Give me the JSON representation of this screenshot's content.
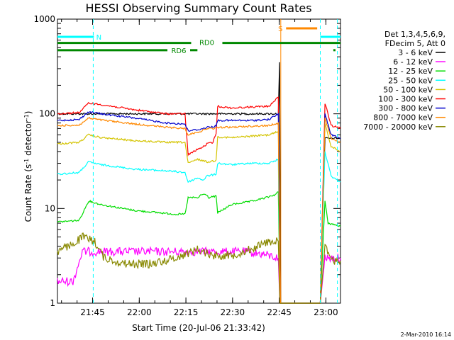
{
  "chart_data": {
    "type": "line",
    "title": "HESSI Observing Summary Count Rates",
    "xlabel": "Start Time (20-Jul-06 21:33:42)",
    "ylabel_main": "Count Rate (s",
    "ylabel_sup1": "-1",
    "ylabel_mid": " detector",
    "ylabel_sup2": "-1",
    "ylabel_end": ")",
    "y_scale": "log",
    "ylim": [
      1,
      1000
    ],
    "xlim_minutes": [
      0,
      91
    ],
    "x_ticks": [
      {
        "label": "21:45",
        "min": 11.3
      },
      {
        "label": "22:00",
        "min": 26.3
      },
      {
        "label": "22:15",
        "min": 41.3
      },
      {
        "label": "22:30",
        "min": 56.3
      },
      {
        "label": "22:45",
        "min": 71.3
      },
      {
        "label": "23:00",
        "min": 86.3
      }
    ],
    "y_ticks": [
      {
        "label": "1",
        "value": 1
      },
      {
        "label": "10",
        "value": 10
      },
      {
        "label": "100",
        "value": 100
      },
      {
        "label": "1000",
        "value": 1000
      }
    ],
    "legend": {
      "header1": "Det 1,3,4,5,6,9,",
      "header2": "FDecim 5, Att 0",
      "placement": "right"
    },
    "series": [
      {
        "name": "3 - 6 keV",
        "color": "#000000",
        "points": [
          [
            0,
            100
          ],
          [
            1,
            100
          ],
          [
            71,
            100
          ],
          [
            71.4,
            350
          ],
          [
            71.8,
            1
          ],
          [
            84.5,
            1
          ],
          [
            86,
            55
          ],
          [
            91,
            55
          ]
        ]
      },
      {
        "name": "6 - 12 keV",
        "color": "#ff00ff",
        "points": [
          [
            0,
            1.7
          ],
          [
            5,
            1.7
          ],
          [
            8,
            3.5
          ],
          [
            60,
            3.5
          ],
          [
            66,
            3.3
          ],
          [
            71,
            3
          ],
          [
            71.5,
            1
          ],
          [
            84.5,
            1
          ],
          [
            86,
            3
          ],
          [
            91,
            3
          ]
        ]
      },
      {
        "name": "12 - 25 keV",
        "color": "#00dd00",
        "points": [
          [
            0,
            7.2
          ],
          [
            7,
            7.5
          ],
          [
            10,
            12
          ],
          [
            14,
            11
          ],
          [
            25,
            9.5
          ],
          [
            38,
            8.7
          ],
          [
            41,
            8.7
          ],
          [
            42,
            13
          ],
          [
            45,
            13
          ],
          [
            45.5,
            13
          ],
          [
            46,
            14
          ],
          [
            48,
            14
          ],
          [
            48.5,
            13
          ],
          [
            51,
            13.5
          ],
          [
            51.5,
            9
          ],
          [
            56,
            11
          ],
          [
            63,
            12
          ],
          [
            67,
            13
          ],
          [
            70,
            14
          ],
          [
            71,
            15
          ],
          [
            71.6,
            1
          ],
          [
            84.5,
            1
          ],
          [
            86,
            12
          ],
          [
            87,
            7
          ],
          [
            91,
            6.5
          ]
        ]
      },
      {
        "name": "25 - 50 keV",
        "color": "#00ffff",
        "points": [
          [
            0,
            23
          ],
          [
            7,
            24
          ],
          [
            10,
            31
          ],
          [
            14,
            29
          ],
          [
            25,
            26
          ],
          [
            35,
            25
          ],
          [
            41,
            24
          ],
          [
            42,
            19
          ],
          [
            45,
            21
          ],
          [
            47,
            20
          ],
          [
            48,
            22
          ],
          [
            51,
            23
          ],
          [
            51.5,
            30
          ],
          [
            56,
            29
          ],
          [
            62,
            30
          ],
          [
            68,
            30
          ],
          [
            71,
            33
          ],
          [
            71.6,
            1
          ],
          [
            84.5,
            1
          ],
          [
            86,
            40
          ],
          [
            88,
            22
          ],
          [
            91,
            19
          ]
        ]
      },
      {
        "name": "50 - 100 keV",
        "color": "#d4c400",
        "points": [
          [
            0,
            48
          ],
          [
            7,
            50
          ],
          [
            10,
            60
          ],
          [
            14,
            56
          ],
          [
            25,
            52
          ],
          [
            35,
            50
          ],
          [
            41,
            50
          ],
          [
            42,
            30
          ],
          [
            45,
            33
          ],
          [
            47,
            32
          ],
          [
            48,
            31
          ],
          [
            51,
            32
          ],
          [
            51.5,
            57
          ],
          [
            56,
            56
          ],
          [
            62,
            58
          ],
          [
            68,
            60
          ],
          [
            71,
            65
          ],
          [
            71.6,
            1
          ],
          [
            84.5,
            1
          ],
          [
            86,
            80
          ],
          [
            88,
            45
          ],
          [
            91,
            40
          ]
        ]
      },
      {
        "name": "100 - 300 keV",
        "color": "#ff0000",
        "points": [
          [
            0,
            100
          ],
          [
            7,
            103
          ],
          [
            10,
            130
          ],
          [
            14,
            125
          ],
          [
            25,
            110
          ],
          [
            35,
            100
          ],
          [
            41,
            100
          ],
          [
            42,
            37
          ],
          [
            45,
            42
          ],
          [
            47,
            45
          ],
          [
            48,
            48
          ],
          [
            50,
            50
          ],
          [
            51,
            62
          ],
          [
            51.5,
            120
          ],
          [
            56,
            115
          ],
          [
            62,
            118
          ],
          [
            68,
            120
          ],
          [
            71,
            150
          ],
          [
            71.6,
            1
          ],
          [
            84.5,
            1
          ],
          [
            86,
            130
          ],
          [
            88,
            75
          ],
          [
            91,
            70
          ]
        ]
      },
      {
        "name": "300 - 800 keV",
        "color": "#0000cc",
        "points": [
          [
            0,
            85
          ],
          [
            7,
            87
          ],
          [
            10,
            105
          ],
          [
            14,
            100
          ],
          [
            25,
            90
          ],
          [
            35,
            80
          ],
          [
            41,
            78
          ],
          [
            42,
            66
          ],
          [
            45,
            68
          ],
          [
            47,
            70
          ],
          [
            48,
            72
          ],
          [
            51,
            74
          ],
          [
            51.5,
            85
          ],
          [
            56,
            85
          ],
          [
            62,
            85
          ],
          [
            68,
            87
          ],
          [
            71,
            100
          ],
          [
            71.6,
            1
          ],
          [
            84.5,
            1
          ],
          [
            86,
            100
          ],
          [
            88,
            60
          ],
          [
            91,
            55
          ]
        ]
      },
      {
        "name": "800 - 7000 keV",
        "color": "#ff8800",
        "points": [
          [
            0,
            75
          ],
          [
            7,
            76
          ],
          [
            10,
            90
          ],
          [
            14,
            86
          ],
          [
            25,
            78
          ],
          [
            35,
            72
          ],
          [
            41,
            70
          ],
          [
            42,
            60
          ],
          [
            45,
            64
          ],
          [
            47,
            67
          ],
          [
            48,
            70
          ],
          [
            51,
            70
          ],
          [
            51.5,
            72
          ],
          [
            56,
            72
          ],
          [
            62,
            74
          ],
          [
            68,
            75
          ],
          [
            71,
            80
          ],
          [
            71.6,
            1
          ],
          [
            84.5,
            1
          ],
          [
            86,
            90
          ],
          [
            88,
            55
          ],
          [
            91,
            50
          ]
        ]
      },
      {
        "name": "7000 - 20000 keV",
        "color": "#888800",
        "points": [
          [
            0,
            3.5
          ],
          [
            5,
            4.2
          ],
          [
            8,
            5
          ],
          [
            12,
            4.5
          ],
          [
            15,
            3
          ],
          [
            22,
            2.6
          ],
          [
            30,
            2.6
          ],
          [
            38,
            3
          ],
          [
            45,
            3.7
          ],
          [
            50,
            3.2
          ],
          [
            56,
            3.2
          ],
          [
            62,
            3.7
          ],
          [
            68,
            4.5
          ],
          [
            71,
            4.5
          ],
          [
            71.5,
            1
          ],
          [
            84.5,
            1
          ],
          [
            86,
            4
          ],
          [
            88,
            2.8
          ],
          [
            91,
            2.8
          ]
        ]
      }
    ],
    "annotations": [
      {
        "label": "N",
        "color": "#00ffff",
        "x_start": 0,
        "x_end": 11.5,
        "level": 650
      },
      {
        "label": "N",
        "color": "#00ffff",
        "x_start": 84.5,
        "x_end": 91,
        "level": 650
      },
      {
        "label": "S",
        "color": "#ff8800",
        "x_start": 73.5,
        "x_end": 83.5,
        "level": 800
      },
      {
        "label": "RD0",
        "color": "#008800",
        "x_start": 0,
        "x_end": 91,
        "level": 560
      },
      {
        "label": "RD6",
        "color": "#008800",
        "x_start": 0,
        "x_end": 45,
        "level": 470
      }
    ],
    "vlines": [
      {
        "min": 11.5,
        "color": "#00ffff"
      },
      {
        "min": 71.8,
        "color": "#ff8800"
      },
      {
        "min": 84.5,
        "color": "#00ffff"
      },
      {
        "min": 90.0,
        "color": "#00ffff"
      }
    ]
  },
  "footer": {
    "timestamp": "2-Mar-2010 16:14"
  }
}
